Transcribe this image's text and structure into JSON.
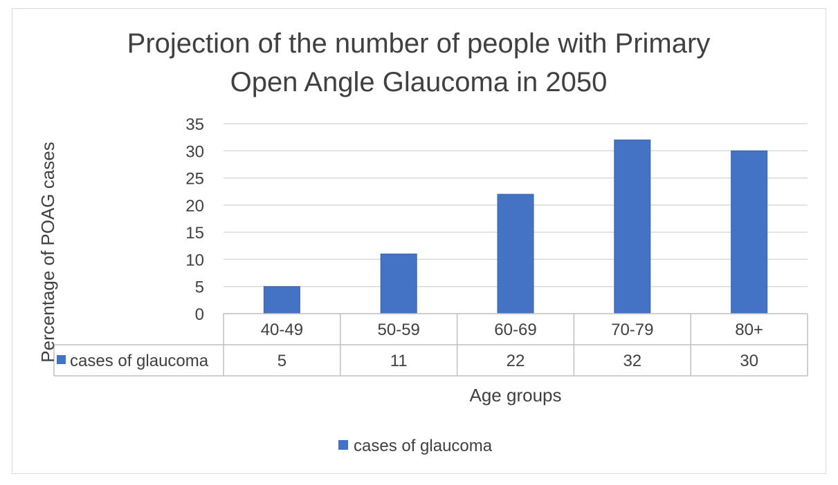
{
  "chart_data": {
    "type": "bar",
    "title_lines": [
      "Projection of the number of people with Primary",
      "Open Angle Glaucoma in 2050"
    ],
    "xlabel": "Age groups",
    "ylabel": "Percentage of POAG cases",
    "categories": [
      "40-49",
      "50-59",
      "60-69",
      "70-79",
      "80+"
    ],
    "series": [
      {
        "name": "cases of glaucoma",
        "values": [
          5,
          11,
          22,
          32,
          30
        ],
        "color": "#4472c4"
      }
    ],
    "ylim": [
      0,
      35
    ],
    "yticks": [
      "0",
      "5",
      "10",
      "15",
      "20",
      "25",
      "30",
      "35"
    ],
    "data_table": {
      "row_label": "cases of glaucoma",
      "values": [
        "5",
        "11",
        "22",
        "32",
        "30"
      ]
    },
    "legend": {
      "position": "bottom",
      "label": "cases of glaucoma"
    },
    "grid": true
  }
}
